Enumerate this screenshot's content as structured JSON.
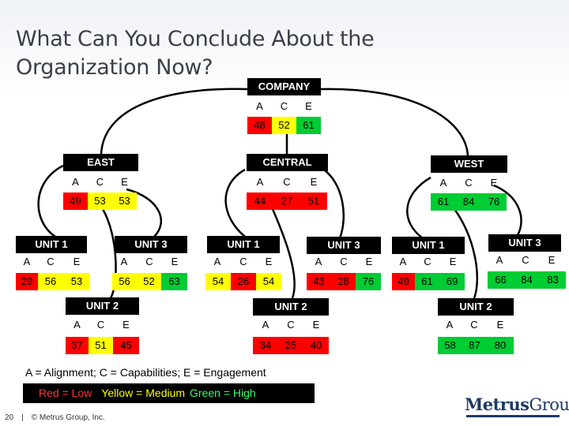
{
  "title": "What Can You Conclude About the Organization Now?",
  "colors": {
    "red": "#ff0000",
    "yellow": "#ffff00",
    "green": "#00cc33"
  },
  "company": {
    "label": "COMPANY",
    "a": "48",
    "c": "52",
    "e": "61"
  },
  "col_headers": {
    "a": "A",
    "c": "C",
    "e": "E"
  },
  "east": {
    "label": "EAST",
    "a": "49",
    "c": "53",
    "e": "53",
    "unit1": {
      "label": "UNIT 1",
      "a": "29",
      "c": "56",
      "e": "53"
    },
    "unit2": {
      "label": "UNIT 2",
      "a": "37",
      "c": "51",
      "e": "45"
    },
    "unit3": {
      "label": "UNIT 3",
      "a": "56",
      "c": "52",
      "e": "63"
    }
  },
  "central": {
    "label": "CENTRAL",
    "a": "44",
    "c": "27",
    "e": "51",
    "unit1": {
      "label": "UNIT 1",
      "a": "54",
      "c": "26",
      "e": "54"
    },
    "unit2": {
      "label": "UNIT 2",
      "a": "34",
      "c": "25",
      "e": "40"
    },
    "unit3": {
      "label": "UNIT 3",
      "a": "43",
      "c": "28",
      "e": "76"
    }
  },
  "west": {
    "label": "WEST",
    "a": "61",
    "c": "84",
    "e": "76",
    "unit1": {
      "label": "UNIT 1",
      "a": "49",
      "c": "61",
      "e": "69"
    },
    "unit2": {
      "label": "UNIT 2",
      "a": "58",
      "c": "87",
      "e": "80"
    },
    "unit3": {
      "label": "UNIT 3",
      "a": "66",
      "c": "84",
      "e": "83"
    }
  },
  "legend": {
    "definitions": "A = Alignment; C = Capabilities; E = Engagement",
    "red": "Red = Low",
    "yellow": "Yellow = Medium",
    "green": "Green = High"
  },
  "footer": {
    "page": "20",
    "divider": "|",
    "copyright": "© Metrus Group, Inc."
  },
  "logo": {
    "part1": "Metrus",
    "part2": "Group"
  }
}
